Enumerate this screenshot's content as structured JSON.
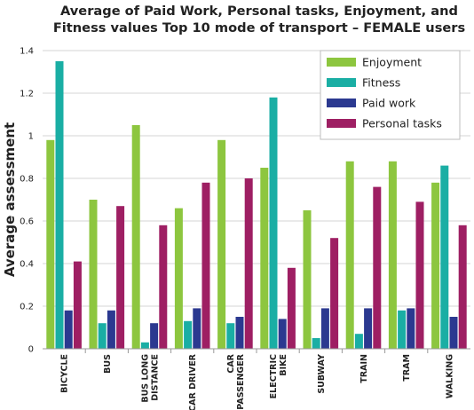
{
  "chart_data": {
    "type": "bar",
    "title": [
      "Average of Paid Work, Personal tasks, Enjoyment, and",
      "Fitness values Top 10 mode of transport – FEMALE users"
    ],
    "xlabel": "",
    "ylabel": "Average assessment",
    "ylim": [
      0,
      1.4
    ],
    "yticks": [
      "0",
      "0.2",
      "0.4",
      "0.6",
      "0.8",
      "1",
      "1.2",
      "1.4"
    ],
    "grid": true,
    "legend_position": "top-right",
    "categories": [
      [
        "BICYCLE"
      ],
      [
        "BUS"
      ],
      [
        "BUS LONG",
        "DISTANCE"
      ],
      [
        "CAR DRIVER"
      ],
      [
        "CAR",
        "PASSENGER"
      ],
      [
        "ELECTRIC",
        "BIKE"
      ],
      [
        "SUBWAY"
      ],
      [
        "TRAIN"
      ],
      [
        "TRAM"
      ],
      [
        "WALKING"
      ]
    ],
    "series": [
      {
        "name": "Enjoyment",
        "color": "#8dc63f",
        "values": [
          0.98,
          0.7,
          1.05,
          0.66,
          0.98,
          0.85,
          0.65,
          0.88,
          0.88,
          0.78
        ]
      },
      {
        "name": "Fitness",
        "color": "#1aaea4",
        "values": [
          1.35,
          0.12,
          0.03,
          0.13,
          0.12,
          1.18,
          0.05,
          0.07,
          0.18,
          0.86
        ]
      },
      {
        "name": "Paid work",
        "color": "#2b3990",
        "values": [
          0.18,
          0.18,
          0.12,
          0.19,
          0.15,
          0.14,
          0.19,
          0.19,
          0.19,
          0.15
        ]
      },
      {
        "name": "Personal tasks",
        "color": "#9e1f63",
        "values": [
          0.41,
          0.67,
          0.58,
          0.78,
          0.8,
          0.38,
          0.52,
          0.76,
          0.69,
          0.58
        ]
      }
    ]
  }
}
